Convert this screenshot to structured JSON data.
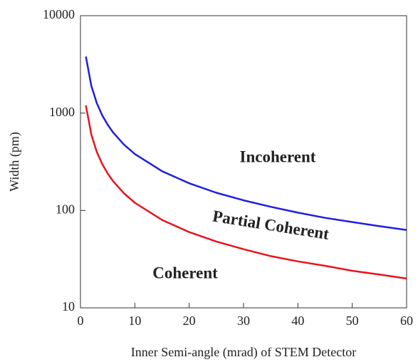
{
  "chart_data": {
    "type": "line",
    "xlabel": "Inner Semi-angle (mrad) of STEM Detector",
    "ylabel": "Width (pm)",
    "x": [
      1,
      2,
      3,
      4,
      5,
      6,
      8,
      10,
      15,
      20,
      25,
      30,
      35,
      40,
      45,
      50,
      55,
      60
    ],
    "series": [
      {
        "color": "#1f1fe0",
        "values": [
          3800,
          1900,
          1267,
          950,
          760,
          633,
          475,
          380,
          253,
          190,
          152,
          127,
          109,
          95,
          84,
          76,
          69,
          63
        ]
      },
      {
        "color": "#e8141c",
        "values": [
          1200,
          600,
          400,
          300,
          240,
          200,
          150,
          120,
          80,
          60,
          48,
          40,
          34,
          30,
          27,
          24,
          22,
          20
        ]
      }
    ],
    "annotations": [
      "Incoherent",
      "Partial Coherent",
      "Coherent"
    ],
    "xlim": [
      0,
      60
    ],
    "xticks": [
      0,
      10,
      20,
      30,
      40,
      50,
      60
    ],
    "ylim": [
      10,
      10000
    ],
    "yticks": [
      10,
      100,
      1000,
      10000
    ],
    "ylog": true,
    "grid": false
  }
}
